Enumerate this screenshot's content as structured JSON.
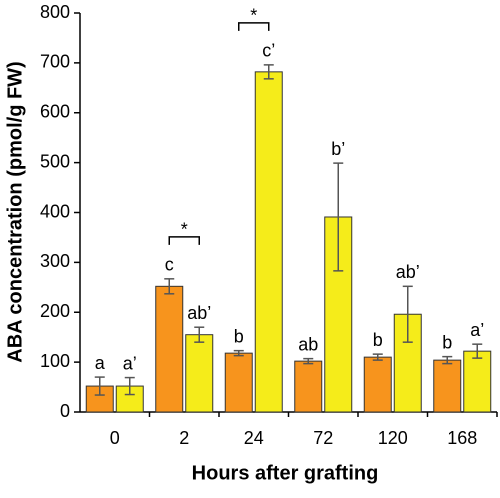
{
  "chart_data": {
    "type": "bar",
    "x_label": "Hours after grafting",
    "y_label": "ABA concentration (pmol/g FW)",
    "categories": [
      "0",
      "2",
      "24",
      "72",
      "120",
      "168"
    ],
    "series": [
      {
        "color": "#f7941d",
        "values": [
          52,
          252,
          118,
          102,
          110,
          104
        ],
        "errors": [
          18,
          15,
          5,
          5,
          6,
          7
        ],
        "letters": [
          "a",
          "c",
          "b",
          "ab",
          "b",
          "b"
        ]
      },
      {
        "color": "#f5ec1a",
        "values": [
          52,
          155,
          682,
          391,
          196,
          122
        ],
        "errors": [
          17,
          15,
          14,
          108,
          56,
          14
        ],
        "letters": [
          "a’",
          "ab’",
          "c’",
          "b’",
          "ab’",
          "a’"
        ]
      }
    ],
    "significance": [
      {
        "category": "2",
        "label": "*"
      },
      {
        "category": "24",
        "label": "*"
      }
    ],
    "ylim": [
      0,
      800
    ],
    "yticks": [
      0,
      100,
      200,
      300,
      400,
      500,
      600,
      700,
      800
    ]
  }
}
